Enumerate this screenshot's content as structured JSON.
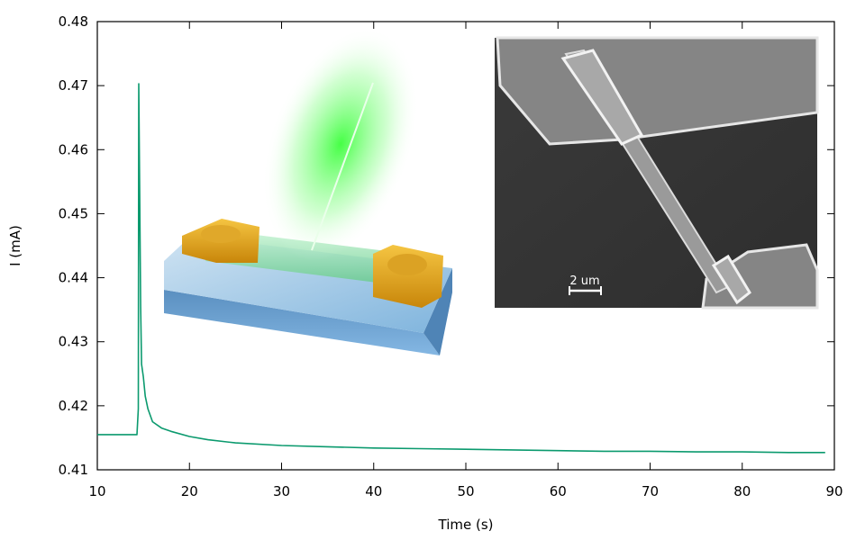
{
  "chart_data": {
    "type": "line",
    "title": "",
    "xlabel": "Time (s)",
    "ylabel": "I (mA)",
    "xlim": [
      10,
      90
    ],
    "ylim": [
      0.41,
      0.48
    ],
    "xticks": [
      "10",
      "20",
      "30",
      "40",
      "50",
      "60",
      "70",
      "80",
      "90"
    ],
    "yticks": [
      "0.41",
      "0.42",
      "0.43",
      "0.44",
      "0.45",
      "0.46",
      "0.47",
      "0.48"
    ],
    "grid": false,
    "legend": "none",
    "series": [
      {
        "color": "#0b9a6e",
        "x": [
          10,
          11,
          12,
          13,
          14,
          14.3,
          14.45,
          14.5,
          14.7,
          14.8,
          15.0,
          15.2,
          15.5,
          16,
          17,
          18,
          20,
          22,
          25,
          30,
          35,
          40,
          45,
          50,
          55,
          60,
          65,
          70,
          75,
          80,
          85,
          89
        ],
        "y": [
          0.4155,
          0.4155,
          0.4155,
          0.4155,
          0.4155,
          0.4155,
          0.4195,
          0.4703,
          0.4355,
          0.4265,
          0.4245,
          0.4215,
          0.4195,
          0.4175,
          0.4165,
          0.416,
          0.4152,
          0.4147,
          0.4142,
          0.4138,
          0.4136,
          0.4134,
          0.4133,
          0.4132,
          0.4131,
          0.413,
          0.4129,
          0.4129,
          0.4128,
          0.4128,
          0.4127,
          0.4127
        ]
      }
    ]
  },
  "inset_sem": {
    "scale_label": "2 um"
  }
}
